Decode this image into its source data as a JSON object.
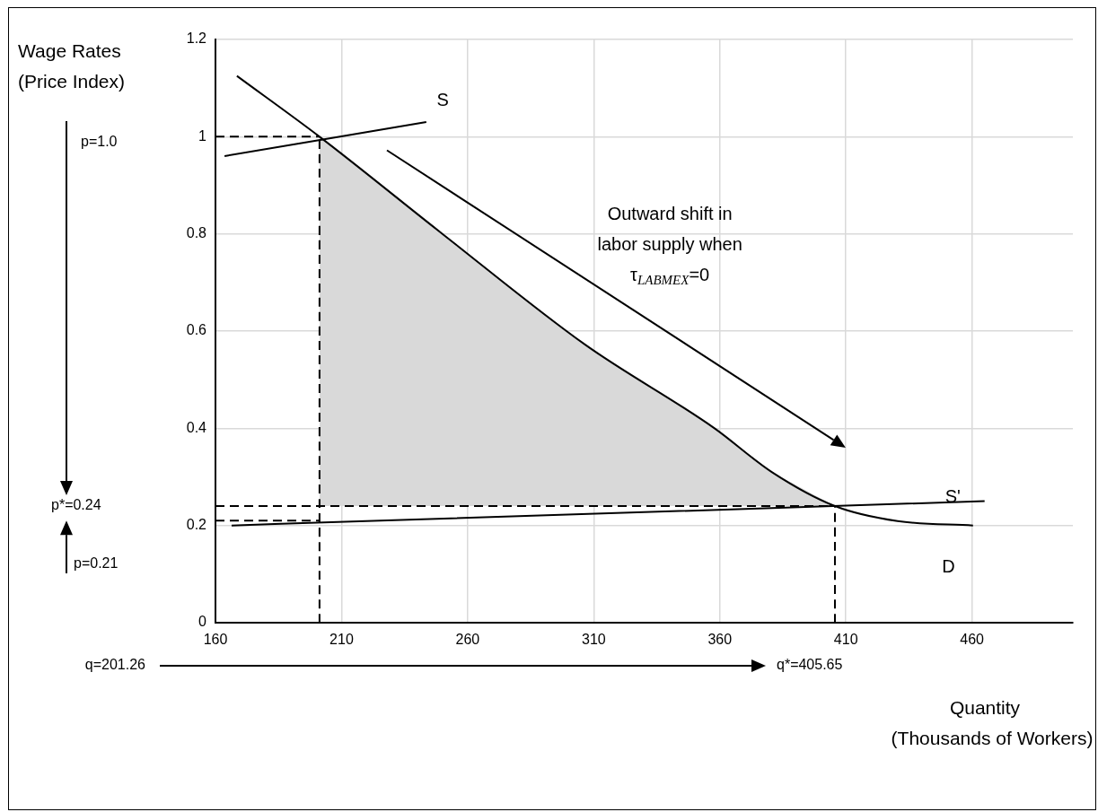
{
  "chart_data": {
    "type": "line",
    "xlabel": "Quantity\n(Thousands of Workers)",
    "ylabel": "Wage Rates\n(Price Index)",
    "xlim": [
      160,
      500
    ],
    "xticks": [
      160,
      210,
      260,
      310,
      360,
      410,
      460
    ],
    "ylim": [
      0,
      1.2
    ],
    "yticks": [
      0,
      0.2,
      0.4,
      0.6,
      0.8,
      1,
      1.2
    ],
    "grid": true,
    "legend": false,
    "marker": "none",
    "series": [
      {
        "type": "area",
        "color": "#d9d9d9",
        "x": [
          201.26,
          250,
          306.6,
          357.9,
          380.6,
          405.65
        ],
        "values": [
          1.0,
          0.8,
          0.572,
          0.4,
          0.31,
          0.24
        ]
      },
      {
        "color": "#000000",
        "line_style": "solid",
        "x": [
          163.6,
          243.6
        ],
        "values": [
          0.96,
          1.03
        ]
      },
      {
        "color": "#000000",
        "line_style": "solid",
        "x": [
          168.5,
          201.26,
          250,
          306.6,
          357.9,
          380.6,
          405.65,
          430.5,
          460.4
        ],
        "values": [
          1.125,
          1.0,
          0.8,
          0.572,
          0.4,
          0.31,
          0.24,
          0.209,
          0.2
        ]
      },
      {
        "color": "#000000",
        "line_style": "solid",
        "x": [
          166.4,
          465
        ],
        "values": [
          0.2,
          0.25
        ]
      },
      {
        "color": "#000000",
        "line_style": "dashed",
        "x": [
          160,
          201.26
        ],
        "values": [
          1.0,
          1.0
        ]
      },
      {
        "color": "#000000",
        "line_style": "dashed",
        "x": [
          201.26,
          201.26
        ],
        "values": [
          0,
          1.0
        ]
      },
      {
        "color": "#000000",
        "line_style": "dashed",
        "x": [
          160,
          405.65
        ],
        "values": [
          0.24,
          0.24
        ]
      },
      {
        "color": "#000000",
        "line_style": "dashed",
        "x": [
          160,
          201.26
        ],
        "values": [
          0.21,
          0.21
        ]
      },
      {
        "color": "#000000",
        "line_style": "dashed",
        "x": [
          405.65,
          405.65
        ],
        "values": [
          0,
          0.24
        ]
      }
    ],
    "annotations": [
      "S",
      "S'",
      "D",
      "Outward shift in\nlabor supply when\nτ$_{LABMEX}$=0",
      "p=1.0",
      "p*=0.24",
      "p=0.21",
      "q=201.26",
      "q*=405.65"
    ]
  }
}
